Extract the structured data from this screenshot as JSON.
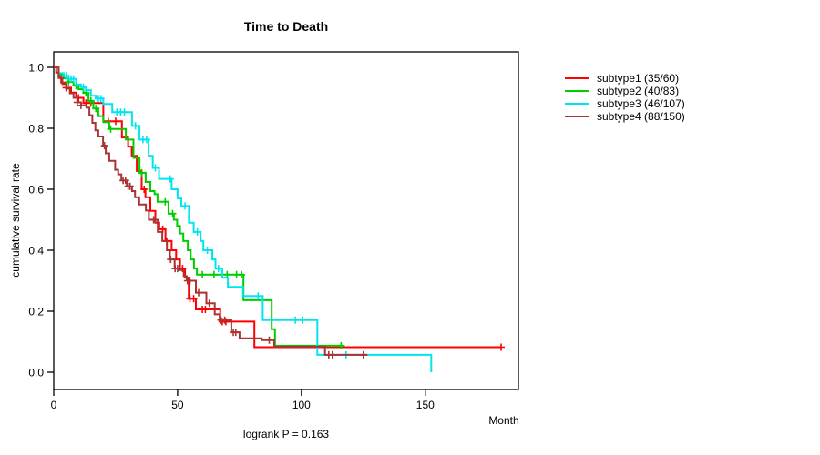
{
  "chart_data": {
    "type": "line",
    "subtype": "kaplan-meier-step-curves",
    "title": "Time to Death",
    "ylabel": "cumulative survival rate",
    "xlabel": "Month",
    "annotation": "logrank P = 0.163",
    "xlim": [
      0,
      187.6
    ],
    "ylim": [
      0,
      1.0
    ],
    "x_ticks": [
      0,
      50,
      100,
      150
    ],
    "y_tick_labels": [
      "0.0",
      "0.2",
      "0.4",
      "0.6",
      "0.8",
      "1.0"
    ],
    "grid": false,
    "legend_position": "right-outside",
    "axis_color": "#000000",
    "series": [
      {
        "id": "subtype1",
        "name": "subtype1 (35/60)",
        "color": "#ff0000",
        "end_month": 180.6,
        "steps": [
          [
            0,
            1.0
          ],
          [
            1,
            0.983
          ],
          [
            2,
            0.967
          ],
          [
            3,
            0.95
          ],
          [
            5,
            0.933
          ],
          [
            7,
            0.917
          ],
          [
            9,
            0.9
          ],
          [
            12,
            0.883
          ],
          [
            20,
            0.823
          ],
          [
            27.5,
            0.77
          ],
          [
            30,
            0.74
          ],
          [
            31.5,
            0.71
          ],
          [
            33.5,
            0.66
          ],
          [
            35.5,
            0.6
          ],
          [
            37,
            0.574
          ],
          [
            39,
            0.529
          ],
          [
            41,
            0.49
          ],
          [
            42.6,
            0.469
          ],
          [
            45.1,
            0.43
          ],
          [
            47.6,
            0.4
          ],
          [
            49.4,
            0.37
          ],
          [
            51,
            0.34
          ],
          [
            53,
            0.31
          ],
          [
            54.5,
            0.241
          ],
          [
            57.4,
            0.206
          ],
          [
            67.2,
            0.166
          ],
          [
            81,
            0.082
          ]
        ],
        "censor_times": [
          5,
          10,
          13,
          15,
          22,
          25,
          36.5,
          44,
          45.6,
          52,
          55,
          56.5,
          60,
          61.2,
          68,
          69.5,
          180.6
        ]
      },
      {
        "id": "subtype2",
        "name": "subtype2 (40/83)",
        "color": "#00cd00",
        "end_month": 116.5,
        "steps": [
          [
            0,
            1.0
          ],
          [
            2,
            0.976
          ],
          [
            4,
            0.964
          ],
          [
            6,
            0.952
          ],
          [
            8,
            0.94
          ],
          [
            10,
            0.928
          ],
          [
            12,
            0.916
          ],
          [
            14,
            0.89
          ],
          [
            16,
            0.865
          ],
          [
            18,
            0.84
          ],
          [
            20,
            0.82
          ],
          [
            22.4,
            0.798
          ],
          [
            29.1,
            0.763
          ],
          [
            32.2,
            0.703
          ],
          [
            34.6,
            0.654
          ],
          [
            37.1,
            0.624
          ],
          [
            39,
            0.594
          ],
          [
            40.7,
            0.584
          ],
          [
            41.9,
            0.559
          ],
          [
            46.3,
            0.52
          ],
          [
            48.5,
            0.5
          ],
          [
            49.8,
            0.48
          ],
          [
            51,
            0.455
          ],
          [
            52.3,
            0.43
          ],
          [
            54.1,
            0.4
          ],
          [
            55.3,
            0.37
          ],
          [
            56.6,
            0.34
          ],
          [
            57.8,
            0.32
          ],
          [
            76.6,
            0.236
          ],
          [
            88,
            0.141
          ],
          [
            89.3,
            0.087
          ]
        ],
        "censor_times": [
          6,
          9,
          13,
          15,
          17,
          23,
          35.5,
          45,
          48,
          60,
          64.7,
          70,
          73.8,
          75.8,
          116
        ]
      },
      {
        "id": "subtype3",
        "name": "subtype3 (46/107)",
        "color": "#00e5ee",
        "end_month": 152.4,
        "steps": [
          [
            0,
            1.0
          ],
          [
            2,
            0.981
          ],
          [
            4,
            0.972
          ],
          [
            6,
            0.962
          ],
          [
            9,
            0.944
          ],
          [
            11,
            0.935
          ],
          [
            13,
            0.925
          ],
          [
            15,
            0.907
          ],
          [
            17,
            0.898
          ],
          [
            20,
            0.88
          ],
          [
            23.6,
            0.853
          ],
          [
            31.6,
            0.808
          ],
          [
            34.6,
            0.763
          ],
          [
            38.3,
            0.71
          ],
          [
            40,
            0.67
          ],
          [
            42.5,
            0.634
          ],
          [
            47.6,
            0.6
          ],
          [
            50,
            0.57
          ],
          [
            51.5,
            0.545
          ],
          [
            54.6,
            0.49
          ],
          [
            56.5,
            0.46
          ],
          [
            59.3,
            0.43
          ],
          [
            60.4,
            0.4
          ],
          [
            64,
            0.37
          ],
          [
            65.3,
            0.34
          ],
          [
            68,
            0.31
          ],
          [
            70.3,
            0.28
          ],
          [
            76.4,
            0.25
          ],
          [
            84.4,
            0.171
          ],
          [
            106.4,
            0.057
          ],
          [
            152.4,
            0
          ]
        ],
        "censor_times": [
          5,
          7,
          8,
          12,
          18,
          19,
          25.5,
          27,
          28.5,
          33,
          36,
          37.5,
          41,
          47,
          53,
          58,
          62,
          66.5,
          82.5,
          97.5,
          100.5,
          118
        ]
      },
      {
        "id": "subtype4",
        "name": "subtype4 (88/150)",
        "color": "#a93434",
        "end_month": 126.7,
        "steps": [
          [
            0,
            1.0
          ],
          [
            2,
            0.965
          ],
          [
            3.5,
            0.945
          ],
          [
            5,
            0.93
          ],
          [
            6.5,
            0.915
          ],
          [
            8,
            0.9
          ],
          [
            9.5,
            0.885
          ],
          [
            11,
            0.875
          ],
          [
            13.2,
            0.868
          ],
          [
            14.4,
            0.843
          ],
          [
            15.6,
            0.818
          ],
          [
            16.8,
            0.793
          ],
          [
            18,
            0.773
          ],
          [
            19.9,
            0.743
          ],
          [
            21,
            0.718
          ],
          [
            22.4,
            0.693
          ],
          [
            24.8,
            0.664
          ],
          [
            26,
            0.649
          ],
          [
            27.3,
            0.629
          ],
          [
            29.5,
            0.61
          ],
          [
            31.6,
            0.594
          ],
          [
            32.8,
            0.574
          ],
          [
            34.5,
            0.55
          ],
          [
            37.2,
            0.53
          ],
          [
            38.4,
            0.5
          ],
          [
            42,
            0.46
          ],
          [
            43.8,
            0.43
          ],
          [
            45.7,
            0.4
          ],
          [
            46.9,
            0.37
          ],
          [
            48.8,
            0.34
          ],
          [
            50.6,
            0.335
          ],
          [
            52.5,
            0.315
          ],
          [
            53.7,
            0.3
          ],
          [
            57.4,
            0.261
          ],
          [
            61.6,
            0.226
          ],
          [
            65,
            0.19
          ],
          [
            67,
            0.171
          ],
          [
            71.7,
            0.131
          ],
          [
            75,
            0.111
          ],
          [
            84,
            0.105
          ],
          [
            89,
            0.084
          ],
          [
            109.5,
            0.057
          ]
        ],
        "censor_times": [
          9.5,
          11,
          20.5,
          28,
          29,
          30,
          30.8,
          40.3,
          41,
          47.2,
          49,
          50,
          54,
          55,
          58.5,
          62.8,
          67.5,
          69,
          72.5,
          73.5,
          87,
          111,
          112.5,
          125
        ]
      }
    ]
  }
}
